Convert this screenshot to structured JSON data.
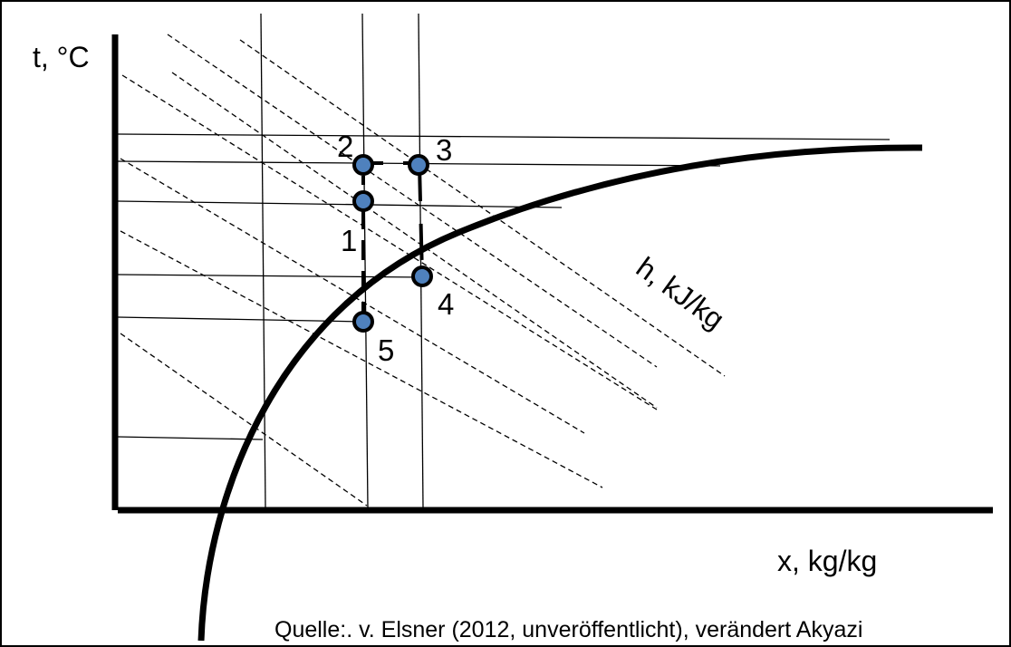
{
  "diagram": {
    "y_axis_label": "t, °C",
    "x_axis_label": "x, kg/kg",
    "enthalpy_label": "h, kJ/kg",
    "source_note": "Quelle:. v. Elsner (2012, unveröffentlicht), verändert Akyazi",
    "points": [
      {
        "id": "p1",
        "label": "1"
      },
      {
        "id": "p2",
        "label": "2"
      },
      {
        "id": "p3",
        "label": "3"
      },
      {
        "id": "p4",
        "label": "4"
      },
      {
        "id": "p5",
        "label": "5"
      }
    ],
    "colors": {
      "point_fill": "#4f81bd",
      "line": "#000000",
      "background": "#ffffff"
    }
  }
}
